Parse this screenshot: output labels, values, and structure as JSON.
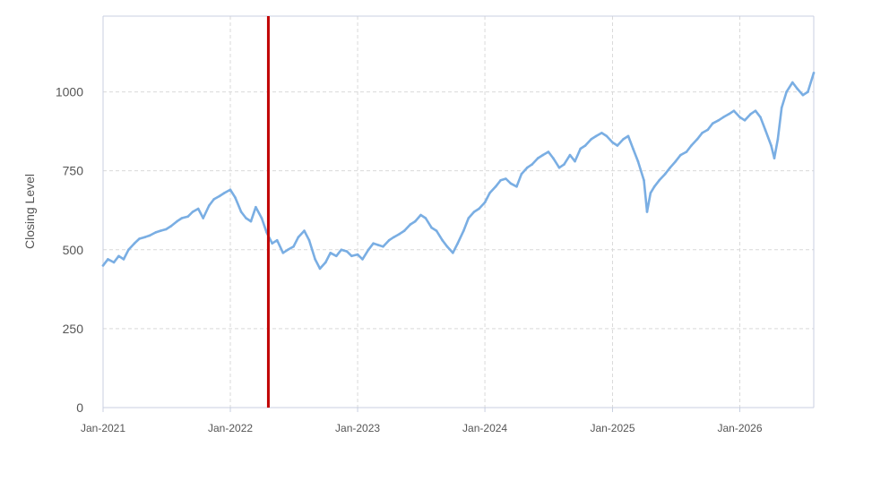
{
  "chart_data": {
    "type": "line",
    "title": "",
    "xlabel": "",
    "ylabel": "Closing Level",
    "ylim": [
      0,
      1240
    ],
    "xlim": [
      "2021-01-01",
      "2026-08-01"
    ],
    "y_ticks": [
      "0",
      "250",
      "500",
      "750",
      "1000"
    ],
    "y_tick_values": [
      0,
      250,
      500,
      750,
      1000
    ],
    "x_ticks": [
      {
        "label": "Jan-2021",
        "date": "2021-01-01"
      },
      {
        "label": "Jan-2022",
        "date": "2022-01-01"
      },
      {
        "label": "Jan-2023",
        "date": "2023-01-01"
      },
      {
        "label": "Jan-2024",
        "date": "2024-01-01"
      },
      {
        "label": "Jan-2025",
        "date": "2025-01-01"
      },
      {
        "label": "Jan-2026",
        "date": "2026-01-01"
      }
    ],
    "grid": true,
    "colors": {
      "line": "#7aaee3",
      "marker": "#c00000",
      "grid": "#d9d9d9",
      "axis": "#c8cfe0"
    },
    "vertical_marker": {
      "x": "2022-04-20"
    },
    "series": [
      {
        "x": [
          "2021-01-01",
          "2021-01-15",
          "2021-02-01",
          "2021-02-15",
          "2021-03-01",
          "2021-03-15",
          "2021-04-01",
          "2021-04-15",
          "2021-05-01",
          "2021-05-15",
          "2021-06-01",
          "2021-06-15",
          "2021-07-01",
          "2021-07-15",
          "2021-08-01",
          "2021-08-15",
          "2021-09-01",
          "2021-09-15",
          "2021-10-01",
          "2021-10-15",
          "2021-11-01",
          "2021-11-15",
          "2021-12-01",
          "2021-12-15",
          "2022-01-01",
          "2022-01-15",
          "2022-02-01",
          "2022-02-15",
          "2022-03-01",
          "2022-03-15",
          "2022-04-01",
          "2022-04-15",
          "2022-05-01",
          "2022-05-15",
          "2022-06-01",
          "2022-06-15",
          "2022-07-01",
          "2022-07-15",
          "2022-08-01",
          "2022-08-15",
          "2022-09-01",
          "2022-09-15",
          "2022-10-01",
          "2022-10-15",
          "2022-11-01",
          "2022-11-15",
          "2022-12-01",
          "2022-12-15",
          "2023-01-01",
          "2023-01-15",
          "2023-02-01",
          "2023-02-15",
          "2023-03-01",
          "2023-03-15",
          "2023-04-01",
          "2023-04-15",
          "2023-05-01",
          "2023-05-15",
          "2023-06-01",
          "2023-06-15",
          "2023-07-01",
          "2023-07-15",
          "2023-08-01",
          "2023-08-15",
          "2023-09-01",
          "2023-09-15",
          "2023-10-01",
          "2023-10-15",
          "2023-11-01",
          "2023-11-15",
          "2023-12-01",
          "2023-12-15",
          "2024-01-01",
          "2024-01-15",
          "2024-02-01",
          "2024-02-15",
          "2024-03-01",
          "2024-03-15",
          "2024-04-01",
          "2024-04-15",
          "2024-05-01",
          "2024-05-15",
          "2024-06-01",
          "2024-06-15",
          "2024-07-01",
          "2024-07-15",
          "2024-08-01",
          "2024-08-15",
          "2024-09-01",
          "2024-09-15",
          "2024-10-01",
          "2024-10-15",
          "2024-11-01",
          "2024-11-15",
          "2024-12-01",
          "2024-12-15",
          "2025-01-01",
          "2025-01-15",
          "2025-02-01",
          "2025-02-15",
          "2025-03-01",
          "2025-03-15",
          "2025-04-01",
          "2025-04-10",
          "2025-04-20",
          "2025-05-01",
          "2025-05-15",
          "2025-06-01",
          "2025-06-15",
          "2025-07-01",
          "2025-07-15",
          "2025-08-01",
          "2025-08-15",
          "2025-09-01",
          "2025-09-15",
          "2025-10-01",
          "2025-10-15",
          "2025-11-01",
          "2025-11-15",
          "2025-12-01",
          "2025-12-15",
          "2026-01-01",
          "2026-01-15",
          "2026-02-01",
          "2026-02-15",
          "2026-03-01",
          "2026-03-15",
          "2026-04-01",
          "2026-04-10",
          "2026-04-20",
          "2026-05-01",
          "2026-05-15",
          "2026-06-01",
          "2026-06-15",
          "2026-07-01",
          "2026-07-15",
          "2026-08-01"
        ],
        "values": [
          450,
          470,
          460,
          480,
          470,
          500,
          520,
          535,
          540,
          545,
          555,
          560,
          565,
          575,
          590,
          600,
          605,
          620,
          630,
          600,
          640,
          660,
          670,
          680,
          690,
          665,
          620,
          600,
          590,
          635,
          600,
          555,
          520,
          530,
          490,
          500,
          510,
          540,
          560,
          530,
          470,
          440,
          460,
          490,
          480,
          500,
          495,
          480,
          485,
          470,
          500,
          520,
          515,
          510,
          530,
          540,
          550,
          560,
          580,
          590,
          610,
          600,
          570,
          560,
          530,
          510,
          490,
          520,
          560,
          600,
          620,
          630,
          650,
          680,
          700,
          720,
          725,
          710,
          700,
          740,
          760,
          770,
          790,
          800,
          810,
          790,
          760,
          770,
          800,
          780,
          820,
          830,
          850,
          860,
          870,
          860,
          840,
          830,
          850,
          860,
          820,
          780,
          720,
          620,
          680,
          700,
          720,
          740,
          760,
          780,
          800,
          810,
          830,
          850,
          870,
          880,
          900,
          910,
          920,
          930,
          940,
          920,
          910,
          930,
          940,
          920,
          880,
          830,
          790,
          850,
          950,
          1000,
          1030,
          1010,
          990,
          1000,
          1060
        ]
      }
    ]
  }
}
